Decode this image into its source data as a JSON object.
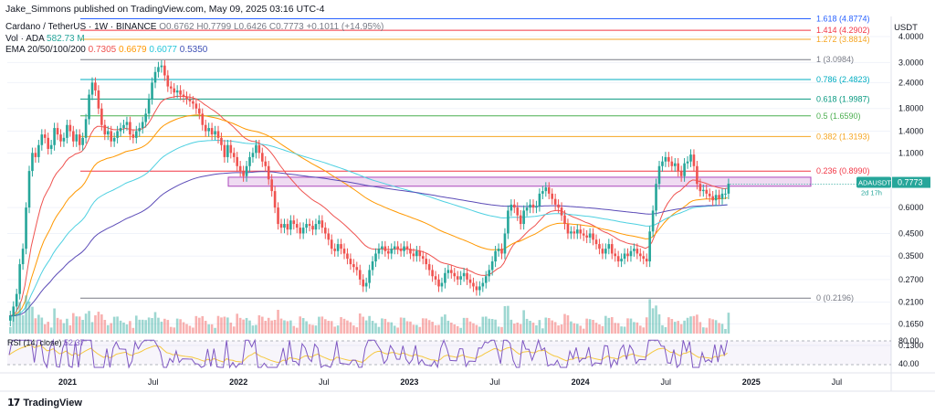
{
  "attribution": "Jake_Simmons published on TradingView.com, May 09, 2025 03:16 UTC-4",
  "header": {
    "symbol": "Cardano / TetherUS · 1W · BINANCE",
    "ohlc": "O0.6762 H0.7799 L0.6426 C0.7773 +0.1011 (+14.95%)",
    "vol_label": "Vol · ADA",
    "vol_value": "582.73 M",
    "ema_label": "EMA 20/50/100/200",
    "ema_values": [
      "0.7305",
      "0.6679",
      "0.6077",
      "0.5350"
    ]
  },
  "colors": {
    "up": "#26a69a",
    "down": "#ef5350",
    "ema20": "#ef5350",
    "ema50": "#ff9800",
    "ema100": "#4dd0e1",
    "ema200": "#5b4bb7",
    "rsi": "#7e57c2",
    "rsi_ma": "#f5c842",
    "zone": "#e1bee7"
  },
  "chart_data": {
    "type": "candlestick",
    "y_scale": "log",
    "currency": "USDT",
    "ylim": [
      0.115,
      5.0
    ],
    "y_ticks": [
      "4.0000",
      "3.0000",
      "2.4000",
      "1.8000",
      "1.4000",
      "1.1000",
      "0.6000",
      "0.4500",
      "0.3500",
      "0.2700",
      "0.2100",
      "0.1650",
      "0.1300"
    ],
    "x_ticks": [
      "2021",
      "Jul",
      "2022",
      "Jul",
      "2023",
      "Jul",
      "2024",
      "Jul",
      "2025",
      "Jul"
    ],
    "last_price_label": "ADAUSDT",
    "last_price": "0.7773",
    "countdown": "2d 17h",
    "fib_levels": [
      {
        "label": "1.618 (4.8774)",
        "value": 4.8774,
        "color": "#2962ff"
      },
      {
        "label": "1.414 (4.2902)",
        "value": 4.2902,
        "color": "#f23645"
      },
      {
        "label": "1.272 (3.8814)",
        "value": 3.8814,
        "color": "#f5a623"
      },
      {
        "label": "1 (3.0984)",
        "value": 3.0984,
        "color": "#787b86"
      },
      {
        "label": "0.786 (2.4823)",
        "value": 2.4823,
        "color": "#00acc1"
      },
      {
        "label": "0.618 (1.9987)",
        "value": 1.9987,
        "color": "#089981"
      },
      {
        "label": "0.5 (1.6590)",
        "value": 1.659,
        "color": "#4caf50"
      },
      {
        "label": "0.382 (1.3193)",
        "value": 1.3193,
        "color": "#f5a623"
      },
      {
        "label": "0.236 (0.8990)",
        "value": 0.899,
        "color": "#f23645"
      },
      {
        "label": "0 (0.2196)",
        "value": 0.2196,
        "color": "#787b86"
      }
    ],
    "zone_range": [
      0.76,
      0.84
    ],
    "candles_close": [
      0.18,
      0.2,
      0.23,
      0.32,
      0.38,
      0.6,
      0.9,
      1.1,
      1.05,
      1.2,
      1.35,
      1.3,
      1.15,
      1.2,
      1.45,
      1.35,
      1.25,
      1.3,
      1.5,
      1.4,
      1.25,
      1.35,
      1.2,
      1.3,
      1.6,
      2.1,
      2.4,
      2.2,
      1.8,
      1.5,
      1.35,
      1.4,
      1.25,
      1.3,
      1.4,
      1.45,
      1.5,
      1.55,
      1.35,
      1.3,
      1.4,
      1.45,
      1.55,
      1.7,
      2.0,
      2.4,
      2.7,
      2.85,
      2.9,
      2.6,
      2.3,
      2.25,
      2.15,
      2.2,
      2.1,
      2.05,
      2.0,
      1.95,
      1.9,
      1.8,
      1.7,
      1.5,
      1.4,
      1.45,
      1.35,
      1.4,
      1.3,
      1.2,
      1.05,
      1.2,
      1.1,
      1.05,
      0.95,
      0.9,
      0.85,
      0.95,
      1.05,
      1.1,
      1.2,
      1.1,
      1.0,
      0.95,
      0.82,
      0.72,
      0.6,
      0.5,
      0.48,
      0.5,
      0.47,
      0.52,
      0.5,
      0.48,
      0.45,
      0.48,
      0.5,
      0.49,
      0.47,
      0.5,
      0.52,
      0.48,
      0.45,
      0.42,
      0.38,
      0.37,
      0.4,
      0.38,
      0.36,
      0.34,
      0.32,
      0.31,
      0.3,
      0.27,
      0.25,
      0.26,
      0.3,
      0.33,
      0.36,
      0.38,
      0.39,
      0.37,
      0.36,
      0.38,
      0.39,
      0.38,
      0.37,
      0.39,
      0.38,
      0.36,
      0.35,
      0.37,
      0.35,
      0.34,
      0.32,
      0.3,
      0.28,
      0.27,
      0.25,
      0.26,
      0.29,
      0.3,
      0.29,
      0.28,
      0.27,
      0.28,
      0.29,
      0.27,
      0.26,
      0.25,
      0.24,
      0.25,
      0.26,
      0.28,
      0.3,
      0.33,
      0.37,
      0.38,
      0.36,
      0.45,
      0.58,
      0.62,
      0.6,
      0.55,
      0.5,
      0.58,
      0.6,
      0.62,
      0.6,
      0.61,
      0.7,
      0.72,
      0.75,
      0.7,
      0.66,
      0.62,
      0.6,
      0.55,
      0.5,
      0.45,
      0.46,
      0.45,
      0.47,
      0.45,
      0.44,
      0.43,
      0.45,
      0.42,
      0.4,
      0.38,
      0.36,
      0.38,
      0.4,
      0.36,
      0.35,
      0.33,
      0.34,
      0.36,
      0.35,
      0.37,
      0.38,
      0.36,
      0.35,
      0.34,
      0.33,
      0.46,
      0.58,
      0.78,
      0.95,
      1.0,
      1.05,
      1.0,
      0.95,
      0.98,
      0.9,
      0.85,
      0.98,
      1.0,
      1.08,
      0.95,
      0.78,
      0.72,
      0.73,
      0.7,
      0.68,
      0.65,
      0.69,
      0.66,
      0.7,
      0.7,
      0.78
    ],
    "rsi_label": "RSI (14, close)",
    "rsi_value": "52.37",
    "rsi_ticks": [
      "80.00",
      "40.00"
    ]
  }
}
